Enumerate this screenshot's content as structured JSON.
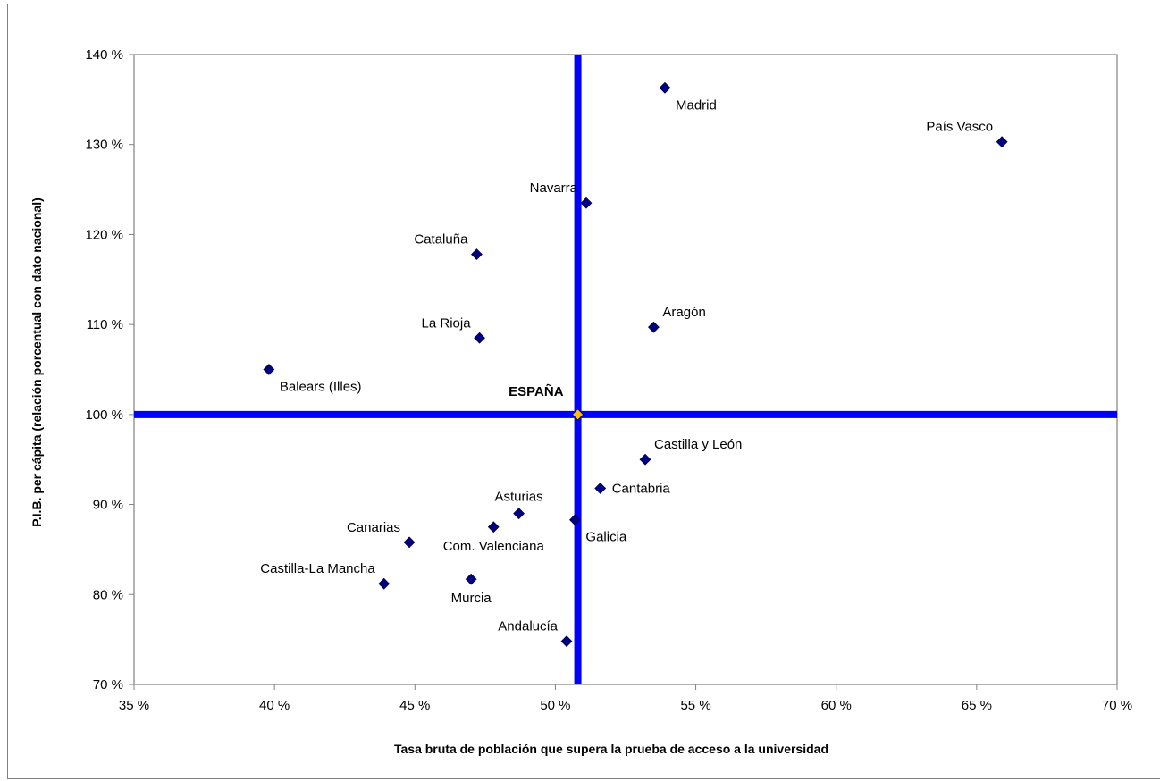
{
  "chart_data": {
    "type": "scatter",
    "title": "",
    "xlabel": "Tasa bruta de población que supera la prueba de acceso a la universidad",
    "ylabel": "P.I.B. per cápita (relación porcentual con dato nacional)",
    "xlim": [
      35,
      70
    ],
    "ylim": [
      70,
      140
    ],
    "x_ticks": [
      35,
      40,
      45,
      50,
      55,
      60,
      65,
      70
    ],
    "y_ticks": [
      70,
      80,
      90,
      100,
      110,
      120,
      130,
      140
    ],
    "x_tick_labels": [
      "35 %",
      "40 %",
      "45 %",
      "50 %",
      "55 %",
      "60 %",
      "65 %",
      "70 %"
    ],
    "y_tick_labels": [
      "70 %",
      "80 %",
      "90 %",
      "100 %",
      "110 %",
      "120 %",
      "130 %",
      "140 %"
    ],
    "grid": false,
    "reference": {
      "label": "ESPAÑA",
      "x": 50.8,
      "y": 100,
      "color": "#FFC000"
    },
    "reference_line_color": "#0000FF",
    "point_color": "#000080",
    "points": [
      {
        "label": "Madrid",
        "x": 53.9,
        "y": 136.3,
        "label_pos": "below-right"
      },
      {
        "label": "País Vasco",
        "x": 65.9,
        "y": 130.3,
        "label_pos": "above-left"
      },
      {
        "label": "Navarra",
        "x": 51.1,
        "y": 123.5,
        "label_pos": "above-left"
      },
      {
        "label": "Cataluña",
        "x": 47.2,
        "y": 117.8,
        "label_pos": "above-left"
      },
      {
        "label": "Aragón",
        "x": 53.5,
        "y": 109.7,
        "label_pos": "above-right"
      },
      {
        "label": "La Rioja",
        "x": 47.3,
        "y": 108.5,
        "label_pos": "above-left"
      },
      {
        "label": "Balears (Illes)",
        "x": 39.8,
        "y": 105.0,
        "label_pos": "below-right"
      },
      {
        "label": "Castilla y León",
        "x": 53.2,
        "y": 95.0,
        "label_pos": "above-right"
      },
      {
        "label": "Cantabria",
        "x": 51.6,
        "y": 91.8,
        "label_pos": "right"
      },
      {
        "label": "Asturias",
        "x": 48.7,
        "y": 89.0,
        "label_pos": "above"
      },
      {
        "label": "Galicia",
        "x": 50.7,
        "y": 88.3,
        "label_pos": "below-right"
      },
      {
        "label": "Com. Valenciana",
        "x": 47.8,
        "y": 87.5,
        "label_pos": "below"
      },
      {
        "label": "Canarias",
        "x": 44.8,
        "y": 85.8,
        "label_pos": "above-left"
      },
      {
        "label": "Murcia",
        "x": 47.0,
        "y": 81.7,
        "label_pos": "below"
      },
      {
        "label": "Castilla-La Mancha",
        "x": 43.9,
        "y": 81.2,
        "label_pos": "above-left"
      },
      {
        "label": "Andalucía",
        "x": 50.4,
        "y": 74.8,
        "label_pos": "above-left"
      }
    ]
  }
}
